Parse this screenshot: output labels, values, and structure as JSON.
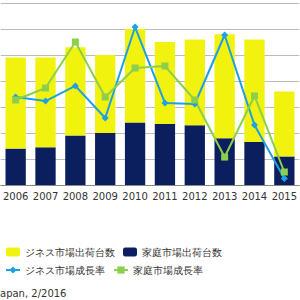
{
  "chart_data": {
    "type": "bar",
    "stacked": true,
    "categories": [
      "2006",
      "2007",
      "2008",
      "2009",
      "2010",
      "2011",
      "2012",
      "2013",
      "2014",
      "2015"
    ],
    "series": [
      {
        "name": "ジネス市場出荷台数",
        "type": "bar",
        "color": "#f2f20f",
        "values": [
          3.5,
          3.45,
          3.4,
          3.0,
          3.6,
          3.15,
          3.3,
          4.0,
          3.95,
          2.5
        ]
      },
      {
        "name": "家庭市場出荷台数",
        "type": "bar",
        "color": "#0b1f5e",
        "values": [
          1.4,
          1.45,
          1.9,
          2.0,
          2.4,
          2.35,
          2.3,
          1.8,
          1.65,
          1.1
        ]
      },
      {
        "name": "ジネス市場成長率",
        "type": "line",
        "axis": "y2",
        "color": "#1ea0e6",
        "marker": "diamond",
        "values": [
          7.7,
          4.6,
          16.2,
          -8.5,
          61.5,
          3.1,
          2.3,
          55.4,
          -13.9,
          -55
        ]
      },
      {
        "name": "家庭市場成長率",
        "type": "line",
        "axis": "y2",
        "color": "#8ccf4c",
        "marker": "square",
        "values": [
          5.4,
          14.6,
          50,
          7.7,
          30,
          31.5,
          5.4,
          -38.5,
          8.5,
          -50
        ]
      }
    ],
    "ylim": [
      0,
      7
    ],
    "yticks": [
      0,
      1,
      2,
      3,
      4,
      5,
      6,
      7
    ],
    "y2lim": [
      -60,
      80
    ],
    "y2ticks": [
      -60,
      -40,
      -20,
      0,
      20,
      40,
      60,
      80
    ],
    "grid": true,
    "tick_labels": "x",
    "legend": "bottom",
    "annotations": [
      "apan, 2/2016"
    ]
  }
}
